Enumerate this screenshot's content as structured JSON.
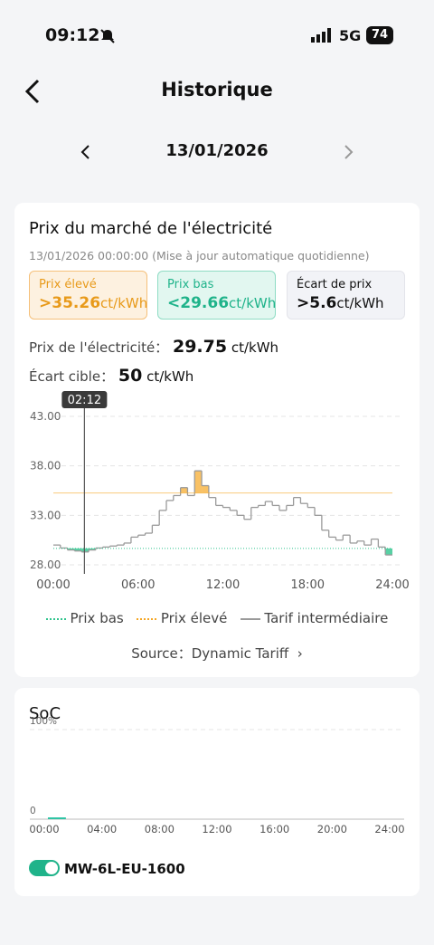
{
  "status_bar": {
    "time": "09:12",
    "network": "5G",
    "battery": "74"
  },
  "header": {
    "title": "Historique"
  },
  "date_nav": {
    "date": "13/01/2026"
  },
  "price_card": {
    "title": "Prix du marché de l'électricité",
    "subtitle": "13/01/2026 00:00:00 (Mise à jour automatique quotidienne)",
    "summary": [
      {
        "label": "Prix élevé",
        "value": ">35.26",
        "unit": "ct/kWh"
      },
      {
        "label": "Prix bas",
        "value": "<29.66",
        "unit": "ct/kWh"
      },
      {
        "label": "Écart de prix",
        "value": ">5.6",
        "unit": "ct/kWh"
      }
    ],
    "price_label": "Prix de l'électricité：",
    "price_value": "29.75",
    "price_unit": "ct/kWh",
    "target_label": "Écart cible：",
    "target_value": "50",
    "target_unit": "ct/kWh",
    "source_label": "Source：",
    "source_value": "Dynamic Tariff"
  },
  "chart_data": [
    {
      "type": "step",
      "x": [
        0,
        0.5,
        1,
        1.5,
        2,
        2.5,
        3,
        3.5,
        4,
        4.5,
        5,
        5.5,
        6,
        6.5,
        7,
        7.5,
        8,
        8.5,
        9,
        9.5,
        10,
        10.5,
        11,
        11.5,
        12,
        12.5,
        13,
        13.5,
        14,
        14.5,
        15,
        15.5,
        16,
        16.5,
        17,
        17.5,
        18,
        18.5,
        19,
        19.5,
        20,
        20.5,
        21,
        21.5,
        22,
        22.5,
        23,
        23.5
      ],
      "series": [
        {
          "name": "Tarif intermédiaire",
          "color": "#9a9a9a",
          "values": [
            30.0,
            29.7,
            29.5,
            29.4,
            29.3,
            29.5,
            29.7,
            29.8,
            29.9,
            30.0,
            30.2,
            30.8,
            31.0,
            31.2,
            32.0,
            33.5,
            34.5,
            35.0,
            35.8,
            35.0,
            37.5,
            36.0,
            34.8,
            34.0,
            33.8,
            33.5,
            33.0,
            32.6,
            33.8,
            34.0,
            34.4,
            34.0,
            33.5,
            34.0,
            34.8,
            34.2,
            33.8,
            33.0,
            31.5,
            30.8,
            30.5,
            31.0,
            30.2,
            30.4,
            30.0,
            30.6,
            29.8,
            29.0
          ]
        },
        {
          "name": "Prix bas",
          "color": "#2fc48d",
          "threshold": 29.66
        },
        {
          "name": "Prix élevé",
          "color": "#f5a623",
          "threshold": 35.26
        }
      ],
      "xlim": [
        0,
        24
      ],
      "xticks": [
        {
          "value": 0,
          "label": "00:00"
        },
        {
          "value": 6,
          "label": "06:00"
        },
        {
          "value": 12,
          "label": "12:00"
        },
        {
          "value": 18,
          "label": "18:00"
        },
        {
          "value": 24,
          "label": "24:00"
        }
      ],
      "ylim": [
        28,
        43
      ],
      "yticks": [
        {
          "value": 28,
          "label": "28.00"
        },
        {
          "value": 33,
          "label": "33.00"
        },
        {
          "value": 38,
          "label": "38.00"
        },
        {
          "value": 43,
          "label": "43.00"
        }
      ],
      "cursor": {
        "value": 2.2,
        "label": "02:12"
      },
      "grid": true
    },
    {
      "type": "line",
      "title": "SoC",
      "x": [
        0.25,
        1.5
      ],
      "series": [
        {
          "name": "MW-6L-EU-1600",
          "color": "#2fc4a4",
          "values": [
            1,
            1
          ]
        }
      ],
      "xlim": [
        0,
        24
      ],
      "xticks": [
        {
          "value": 0,
          "label": "00:00"
        },
        {
          "value": 4,
          "label": "04:00"
        },
        {
          "value": 8,
          "label": "08:00"
        },
        {
          "value": 12,
          "label": "12:00"
        },
        {
          "value": 16,
          "label": "16:00"
        },
        {
          "value": 20,
          "label": "20:00"
        },
        {
          "value": 24,
          "label": "24:00"
        }
      ],
      "ylim": [
        0,
        100
      ],
      "yticks": [
        {
          "value": 0,
          "label": "0"
        },
        {
          "value": 100,
          "label": "100%"
        }
      ],
      "grid": true
    }
  ]
}
